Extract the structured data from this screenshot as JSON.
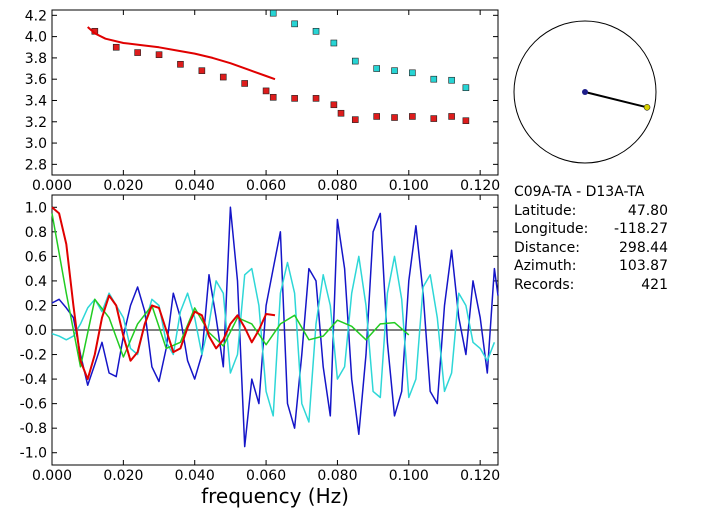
{
  "chart_data": [
    {
      "type": "scatter",
      "xlim": [
        0.0,
        0.125
      ],
      "ylim": [
        2.7,
        4.25
      ],
      "x_ticks": [
        "0.000",
        "0.020",
        "0.040",
        "0.060",
        "0.080",
        "0.100",
        "0.120"
      ],
      "y_ticks": [
        "2.8",
        "3.0",
        "3.2",
        "3.4",
        "3.6",
        "3.8",
        "4.0",
        "4.2"
      ],
      "grid": false,
      "series": [
        {
          "kind": "points",
          "color": "#dd1c1c",
          "x": [
            0.012,
            0.018,
            0.024,
            0.03,
            0.036,
            0.042,
            0.048,
            0.054,
            0.06,
            0.062,
            0.068,
            0.074,
            0.079,
            0.081,
            0.085,
            0.091,
            0.096,
            0.101,
            0.107,
            0.112,
            0.116
          ],
          "y": [
            4.05,
            3.9,
            3.85,
            3.83,
            3.74,
            3.68,
            3.62,
            3.56,
            3.49,
            3.43,
            3.42,
            3.42,
            3.36,
            3.28,
            3.22,
            3.25,
            3.24,
            3.25,
            3.23,
            3.25,
            3.21
          ]
        },
        {
          "kind": "points",
          "color": "#27d4d4",
          "x": [
            0.062,
            0.068,
            0.074,
            0.079,
            0.085,
            0.091,
            0.096,
            0.101,
            0.107,
            0.112,
            0.116
          ],
          "y": [
            4.22,
            4.12,
            4.05,
            3.94,
            3.77,
            3.7,
            3.68,
            3.66,
            3.6,
            3.59,
            3.52
          ]
        },
        {
          "kind": "line",
          "color": "#e00000",
          "x": [
            0.01,
            0.012,
            0.015,
            0.02,
            0.025,
            0.03,
            0.035,
            0.04,
            0.045,
            0.05,
            0.055,
            0.06,
            0.0625
          ],
          "y": [
            4.09,
            4.03,
            3.98,
            3.94,
            3.92,
            3.9,
            3.87,
            3.84,
            3.8,
            3.75,
            3.69,
            3.63,
            3.6
          ]
        }
      ]
    },
    {
      "type": "line",
      "xlim": [
        0.0,
        0.125
      ],
      "ylim": [
        -1.1,
        1.1
      ],
      "xlabel": "frequency (Hz)",
      "x_ticks": [
        "0.000",
        "0.020",
        "0.040",
        "0.060",
        "0.080",
        "0.100",
        "0.120"
      ],
      "y_ticks": [
        "-1.0",
        "-0.8",
        "-0.6",
        "-0.4",
        "-0.2",
        "0.0",
        "0.2",
        "0.4",
        "0.6",
        "0.8",
        "1.0"
      ],
      "grid": false,
      "series": [
        {
          "color": "#1515c8",
          "x": [
            0.0,
            0.002,
            0.004,
            0.006,
            0.008,
            0.01,
            0.012,
            0.014,
            0.016,
            0.018,
            0.02,
            0.022,
            0.024,
            0.026,
            0.028,
            0.03,
            0.032,
            0.034,
            0.036,
            0.038,
            0.04,
            0.042,
            0.044,
            0.046,
            0.048,
            0.05,
            0.052,
            0.054,
            0.056,
            0.058,
            0.06,
            0.062,
            0.064,
            0.066,
            0.068,
            0.07,
            0.072,
            0.074,
            0.076,
            0.078,
            0.08,
            0.082,
            0.084,
            0.086,
            0.088,
            0.09,
            0.092,
            0.094,
            0.096,
            0.098,
            0.1,
            0.102,
            0.104,
            0.106,
            0.108,
            0.11,
            0.112,
            0.114,
            0.116,
            0.118,
            0.12,
            0.122,
            0.124,
            0.125
          ],
          "y": [
            0.22,
            0.25,
            0.18,
            0.1,
            -0.2,
            -0.45,
            -0.28,
            -0.1,
            -0.35,
            -0.38,
            -0.05,
            0.2,
            0.35,
            0.15,
            -0.3,
            -0.42,
            -0.15,
            0.3,
            0.1,
            -0.25,
            -0.4,
            -0.2,
            0.45,
            0.1,
            -0.3,
            1.0,
            0.4,
            -0.95,
            -0.4,
            -0.6,
            0.2,
            0.5,
            0.8,
            -0.6,
            -0.8,
            -0.2,
            0.5,
            0.4,
            -0.3,
            -0.7,
            0.9,
            0.5,
            -0.4,
            -0.85,
            -0.2,
            0.8,
            0.95,
            -0.1,
            -0.7,
            -0.5,
            0.4,
            0.85,
            0.3,
            -0.5,
            -0.6,
            0.2,
            0.65,
            0.1,
            -0.2,
            0.4,
            0.1,
            -0.35,
            0.5,
            0.28
          ]
        },
        {
          "color": "#2ed7d7",
          "x": [
            0.0,
            0.002,
            0.004,
            0.006,
            0.008,
            0.01,
            0.012,
            0.014,
            0.016,
            0.018,
            0.02,
            0.022,
            0.024,
            0.026,
            0.028,
            0.03,
            0.032,
            0.034,
            0.036,
            0.038,
            0.04,
            0.042,
            0.044,
            0.046,
            0.048,
            0.05,
            0.052,
            0.054,
            0.056,
            0.058,
            0.06,
            0.062,
            0.064,
            0.066,
            0.068,
            0.07,
            0.072,
            0.074,
            0.076,
            0.078,
            0.08,
            0.082,
            0.084,
            0.086,
            0.088,
            0.09,
            0.092,
            0.094,
            0.096,
            0.098,
            0.1,
            0.102,
            0.104,
            0.106,
            0.108,
            0.11,
            0.112,
            0.114,
            0.116,
            0.118,
            0.12,
            0.122,
            0.124
          ],
          "y": [
            -0.03,
            -0.05,
            -0.08,
            -0.05,
            0.05,
            0.18,
            0.25,
            0.15,
            0.3,
            0.2,
            0.1,
            -0.15,
            -0.2,
            0.05,
            0.25,
            0.2,
            -0.1,
            -0.2,
            0.15,
            0.3,
            0.1,
            -0.2,
            0.05,
            0.4,
            0.3,
            -0.35,
            -0.2,
            0.45,
            0.5,
            0.2,
            -0.5,
            -0.7,
            0.3,
            0.55,
            0.3,
            -0.6,
            -0.75,
            0.05,
            0.45,
            0.2,
            -0.4,
            -0.3,
            0.3,
            0.6,
            0.2,
            -0.5,
            -0.55,
            0.3,
            0.6,
            0.25,
            -0.55,
            -0.4,
            0.35,
            0.45,
            0.1,
            -0.5,
            -0.35,
            0.3,
            0.2,
            -0.1,
            -0.15,
            -0.25,
            -0.1
          ]
        },
        {
          "color": "#22cc22",
          "x": [
            0.0,
            0.004,
            0.008,
            0.012,
            0.016,
            0.02,
            0.024,
            0.028,
            0.032,
            0.036,
            0.04,
            0.044,
            0.048,
            0.052,
            0.056,
            0.06,
            0.064,
            0.068,
            0.072,
            0.076,
            0.08,
            0.084,
            0.088,
            0.092,
            0.096,
            0.1
          ],
          "y": [
            0.95,
            0.3,
            -0.3,
            0.25,
            0.1,
            -0.22,
            0.05,
            0.2,
            -0.15,
            -0.1,
            0.18,
            -0.02,
            -0.13,
            0.1,
            0.05,
            -0.12,
            0.05,
            0.12,
            -0.08,
            -0.05,
            0.08,
            0.03,
            -0.08,
            0.05,
            0.06,
            -0.04
          ]
        },
        {
          "color": "#e00000",
          "x": [
            0.0,
            0.002,
            0.004,
            0.006,
            0.008,
            0.01,
            0.012,
            0.014,
            0.016,
            0.018,
            0.02,
            0.022,
            0.024,
            0.026,
            0.028,
            0.03,
            0.032,
            0.034,
            0.036,
            0.038,
            0.04,
            0.042,
            0.044,
            0.046,
            0.048,
            0.05,
            0.052,
            0.054,
            0.056,
            0.058,
            0.06,
            0.0625
          ],
          "y": [
            1.0,
            0.95,
            0.7,
            0.2,
            -0.25,
            -0.4,
            -0.2,
            0.1,
            0.28,
            0.2,
            -0.05,
            -0.25,
            -0.18,
            0.05,
            0.2,
            0.18,
            0.0,
            -0.18,
            -0.15,
            0.02,
            0.15,
            0.12,
            -0.05,
            -0.15,
            -0.08,
            0.05,
            0.12,
            0.02,
            -0.1,
            0.0,
            0.13,
            0.12
          ]
        }
      ]
    }
  ],
  "inset": {
    "center_color": "#1e1e8a",
    "end_color": "#d8d000",
    "azimuth_deg": 103.87,
    "length_fraction": 0.9
  },
  "station": {
    "title": "C09A-TA  -  D13A-TA",
    "rows": [
      {
        "k": "Latitude:",
        "v": "47.80"
      },
      {
        "k": "Longitude:",
        "v": "-118.27"
      },
      {
        "k": "Distance:",
        "v": "298.44"
      },
      {
        "k": "Azimuth:",
        "v": "103.87"
      },
      {
        "k": "Records:",
        "v": "421"
      }
    ]
  }
}
